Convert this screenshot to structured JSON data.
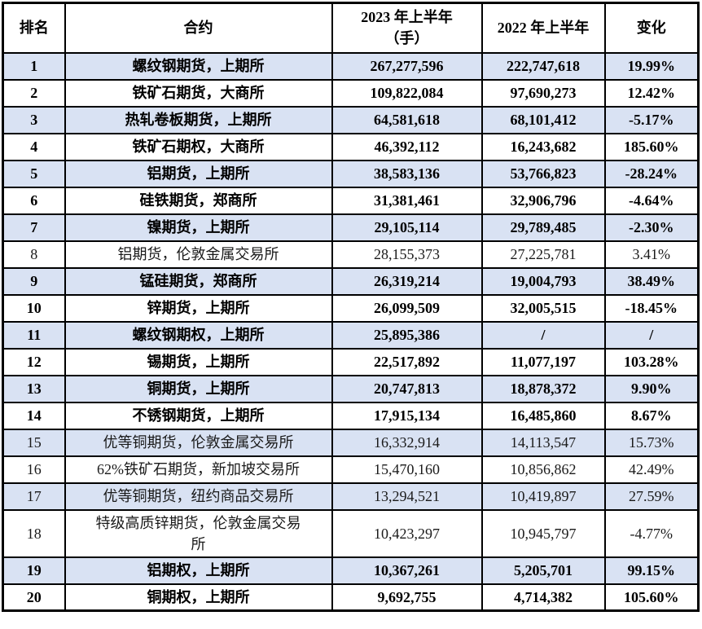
{
  "table": {
    "header": {
      "rank": "排名",
      "contract": "合约",
      "h2023_line1": "2023 年上半年",
      "h2023_line2": "（手）",
      "h2022": "2022 年上半年",
      "change": "变化"
    },
    "colors": {
      "shaded_row": "#d9e2f3",
      "border": "#000000",
      "text": "#000000"
    },
    "rows": [
      {
        "rank": "1",
        "contract": "螺纹钢期货，上期所",
        "v2023": "267,277,596",
        "v2022": "222,747,618",
        "change": "19.99%",
        "bold": true,
        "shaded": true
      },
      {
        "rank": "2",
        "contract": "铁矿石期货，大商所",
        "v2023": "109,822,084",
        "v2022": "97,690,273",
        "change": "12.42%",
        "bold": true,
        "shaded": false
      },
      {
        "rank": "3",
        "contract": "热轧卷板期货，上期所",
        "v2023": "64,581,618",
        "v2022": "68,101,412",
        "change": "-5.17%",
        "bold": true,
        "shaded": true
      },
      {
        "rank": "4",
        "contract": "铁矿石期权，大商所",
        "v2023": "46,392,112",
        "v2022": "16,243,682",
        "change": "185.60%",
        "bold": true,
        "shaded": false
      },
      {
        "rank": "5",
        "contract": "铝期货，上期所",
        "v2023": "38,583,136",
        "v2022": "53,766,823",
        "change": "-28.24%",
        "bold": true,
        "shaded": true
      },
      {
        "rank": "6",
        "contract": "硅铁期货，郑商所",
        "v2023": "31,381,461",
        "v2022": "32,906,796",
        "change": "-4.64%",
        "bold": true,
        "shaded": false
      },
      {
        "rank": "7",
        "contract": "镍期货，上期所",
        "v2023": "29,105,114",
        "v2022": "29,789,485",
        "change": "-2.30%",
        "bold": true,
        "shaded": true
      },
      {
        "rank": "8",
        "contract": "铝期货，伦敦金属交易所",
        "v2023": "28,155,373",
        "v2022": "27,225,781",
        "change": "3.41%",
        "bold": false,
        "shaded": false
      },
      {
        "rank": "9",
        "contract": "锰硅期货，郑商所",
        "v2023": "26,319,214",
        "v2022": "19,004,793",
        "change": "38.49%",
        "bold": true,
        "shaded": true
      },
      {
        "rank": "10",
        "contract": "锌期货，上期所",
        "v2023": "26,099,509",
        "v2022": "32,005,515",
        "change": "-18.45%",
        "bold": true,
        "shaded": false
      },
      {
        "rank": "11",
        "contract": "螺纹钢期权，上期所",
        "v2023": "25,895,386",
        "v2022": "/",
        "change": "/",
        "bold": true,
        "shaded": true
      },
      {
        "rank": "12",
        "contract": "锡期货，上期所",
        "v2023": "22,517,892",
        "v2022": "11,077,197",
        "change": "103.28%",
        "bold": true,
        "shaded": false
      },
      {
        "rank": "13",
        "contract": "铜期货，上期所",
        "v2023": "20,747,813",
        "v2022": "18,878,372",
        "change": "9.90%",
        "bold": true,
        "shaded": true
      },
      {
        "rank": "14",
        "contract": "不锈钢期货，上期所",
        "v2023": "17,915,134",
        "v2022": "16,485,860",
        "change": "8.67%",
        "bold": true,
        "shaded": false
      },
      {
        "rank": "15",
        "contract": "优等铜期货，伦敦金属交易所",
        "v2023": "16,332,914",
        "v2022": "14,113,547",
        "change": "15.73%",
        "bold": false,
        "shaded": true
      },
      {
        "rank": "16",
        "contract": "62%铁矿石期货，新加坡交易所",
        "v2023": "15,470,160",
        "v2022": "10,856,862",
        "change": "42.49%",
        "bold": false,
        "shaded": false
      },
      {
        "rank": "17",
        "contract": "优等铜期货，纽约商品交易所",
        "v2023": "13,294,521",
        "v2022": "10,419,897",
        "change": "27.59%",
        "bold": false,
        "shaded": true
      },
      {
        "rank": "18",
        "contract": "特级高质锌期货，伦敦金属交易\n所",
        "v2023": "10,423,297",
        "v2022": "10,945,797",
        "change": "-4.77%",
        "bold": false,
        "shaded": false
      },
      {
        "rank": "19",
        "contract": "铝期权，上期所",
        "v2023": "10,367,261",
        "v2022": "5,205,701",
        "change": "99.15%",
        "bold": true,
        "shaded": true
      },
      {
        "rank": "20",
        "contract": "铜期权，上期所",
        "v2023": "9,692,755",
        "v2022": "4,714,382",
        "change": "105.60%",
        "bold": true,
        "shaded": false
      }
    ]
  }
}
